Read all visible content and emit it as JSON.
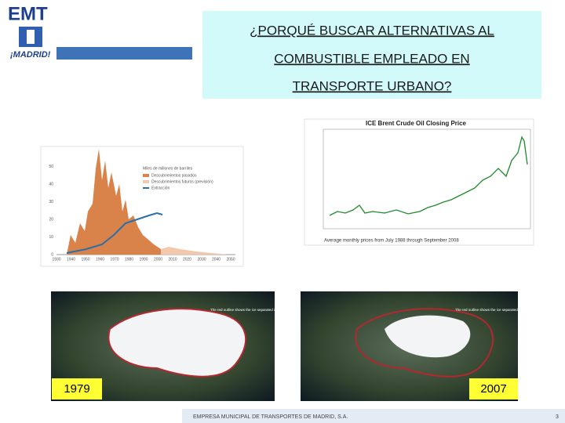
{
  "header": {
    "logo": "EMT",
    "city": "¡MADRID!"
  },
  "title": {
    "lines": [
      "¿PORQUÉ BUSCAR ALTERNATIVAS AL",
      "COMBUSTIBLE EMPLEADO EN",
      "TRANSPORTE URBANO?"
    ]
  },
  "discoveries_image": {
    "legend_title": "Miles de millones de barriles",
    "legend_items": [
      "Descubrimientos pasados",
      "Descubrimientos futuros (previsión)",
      "Extracción"
    ],
    "y_labels": [
      "0",
      "10",
      "20",
      "30",
      "40",
      "50"
    ],
    "x_labels": [
      "1930",
      "1940",
      "1950",
      "1960",
      "1970",
      "1980",
      "1990",
      "2000",
      "2010",
      "2020",
      "2030",
      "2040",
      "2050"
    ]
  },
  "oil_image": {
    "title": "ICE Brent Crude Oil Closing Price",
    "caption": "Average monthly prices from July 1988 through September 2008"
  },
  "photos": [
    {
      "note": "The red outline shows the ice separated in 1979",
      "year": "1979"
    },
    {
      "note": "The red outline shows the ice separated in 1979",
      "year": "2007"
    }
  ],
  "footer": {
    "company": "EMPRESA MUNICIPAL DE TRANSPORTES DE MADRID, S.A.",
    "page": "3"
  }
}
